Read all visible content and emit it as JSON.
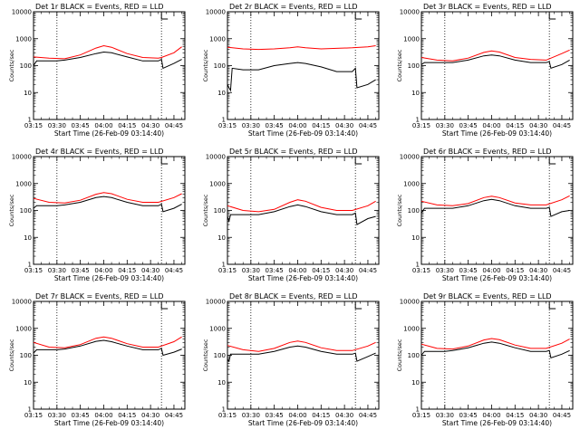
{
  "figure": {
    "panel_title_suffix": "BLACK = Events, RED = LLD",
    "ylabel": "Counts/sec",
    "xlabel": "Start Time (26-Feb-09 03:14:40)",
    "x_ticks": [
      "03:15",
      "03:30",
      "03:45",
      "04:00",
      "04:15",
      "04:30",
      "04:45"
    ],
    "y_ticks": [
      "1",
      "10",
      "100",
      "1000",
      "10000"
    ],
    "series_colors": {
      "events": "#000000",
      "lld": "#ff0000"
    }
  },
  "chart_data": [
    {
      "type": "line",
      "title": "Det 1r BLACK = Events, RED = LLD",
      "xlabel": "Start Time (26-Feb-09 03:14:40)",
      "ylabel": "Counts/sec",
      "x_unit": "minutes after 03:15",
      "ylim": [
        1,
        10000
      ],
      "log_y": true,
      "vlines_x": [
        15,
        82
      ],
      "marker_x": 82,
      "series": [
        {
          "color": "#000000",
          "x": [
            0,
            2,
            10,
            15,
            20,
            30,
            40,
            45,
            50,
            60,
            70,
            80,
            82,
            83,
            90,
            95
          ],
          "values": [
            100,
            150,
            150,
            150,
            160,
            200,
            280,
            320,
            300,
            210,
            150,
            150,
            170,
            80,
            120,
            170
          ]
        },
        {
          "color": "#ff0000",
          "x": [
            0,
            10,
            20,
            30,
            40,
            45,
            50,
            60,
            70,
            80,
            82,
            90,
            95
          ],
          "values": [
            210,
            190,
            180,
            250,
            450,
            550,
            480,
            280,
            200,
            190,
            200,
            300,
            500
          ]
        }
      ]
    },
    {
      "type": "line",
      "title": "Det 2r BLACK = Events, RED = LLD",
      "xlabel": "Start Time (26-Feb-09 03:14:40)",
      "ylabel": "Counts/sec",
      "x_unit": "minutes after 03:15",
      "ylim": [
        1,
        10000
      ],
      "log_y": true,
      "vlines_x": [
        15,
        82
      ],
      "marker_x": 82,
      "series": [
        {
          "color": "#000000",
          "x": [
            0,
            1,
            2,
            3,
            10,
            15,
            20,
            30,
            40,
            45,
            50,
            60,
            70,
            80,
            82,
            83,
            90,
            95
          ],
          "values": [
            20,
            15,
            12,
            80,
            70,
            70,
            70,
            100,
            120,
            130,
            120,
            90,
            60,
            60,
            80,
            15,
            20,
            30
          ]
        },
        {
          "color": "#ff0000",
          "x": [
            0,
            10,
            20,
            30,
            40,
            45,
            50,
            60,
            70,
            80,
            90,
            95
          ],
          "values": [
            480,
            420,
            400,
            420,
            460,
            500,
            460,
            420,
            440,
            460,
            500,
            550
          ]
        }
      ]
    },
    {
      "type": "line",
      "title": "Det 3r BLACK = Events, RED = LLD",
      "xlabel": "Start Time (26-Feb-09 03:14:40)",
      "ylabel": "Counts/sec",
      "x_unit": "minutes after 03:15",
      "ylim": [
        1,
        10000
      ],
      "log_y": true,
      "vlines_x": [
        15,
        82
      ],
      "marker_x": 82,
      "series": [
        {
          "color": "#000000",
          "x": [
            0,
            2,
            10,
            15,
            20,
            30,
            40,
            45,
            50,
            60,
            70,
            80,
            82,
            83,
            90,
            95
          ],
          "values": [
            110,
            130,
            130,
            130,
            130,
            160,
            230,
            250,
            230,
            160,
            130,
            130,
            140,
            80,
            110,
            160
          ]
        },
        {
          "color": "#ff0000",
          "x": [
            0,
            10,
            20,
            30,
            40,
            45,
            50,
            60,
            70,
            80,
            90,
            95
          ],
          "values": [
            200,
            160,
            150,
            190,
            310,
            350,
            320,
            200,
            170,
            160,
            280,
            380
          ]
        }
      ]
    },
    {
      "type": "line",
      "title": "Det 4r BLACK = Events, RED = LLD",
      "xlabel": "Start Time (26-Feb-09 03:14:40)",
      "ylabel": "Counts/sec",
      "x_unit": "minutes after 03:15",
      "ylim": [
        1,
        10000
      ],
      "log_y": true,
      "vlines_x": [
        15,
        82
      ],
      "marker_x": 82,
      "series": [
        {
          "color": "#000000",
          "x": [
            0,
            2,
            10,
            15,
            20,
            30,
            40,
            45,
            50,
            60,
            70,
            80,
            82,
            83,
            90,
            95
          ],
          "values": [
            120,
            150,
            150,
            150,
            160,
            200,
            300,
            330,
            300,
            200,
            150,
            150,
            170,
            90,
            120,
            170
          ]
        },
        {
          "color": "#ff0000",
          "x": [
            0,
            10,
            20,
            30,
            40,
            45,
            50,
            60,
            70,
            80,
            90,
            95
          ],
          "values": [
            280,
            200,
            190,
            240,
            400,
            460,
            420,
            260,
            200,
            200,
            300,
            420
          ]
        }
      ]
    },
    {
      "type": "line",
      "title": "Det 5r BLACK = Events, RED = LLD",
      "xlabel": "Start Time (26-Feb-09 03:14:40)",
      "ylabel": "Counts/sec",
      "x_unit": "minutes after 03:15",
      "ylim": [
        1,
        10000
      ],
      "log_y": true,
      "vlines_x": [
        15,
        82
      ],
      "marker_x": 82,
      "series": [
        {
          "color": "#000000",
          "x": [
            0,
            1,
            2,
            10,
            15,
            20,
            30,
            40,
            45,
            50,
            60,
            70,
            80,
            82,
            83,
            90,
            95
          ],
          "values": [
            60,
            40,
            70,
            70,
            70,
            70,
            90,
            140,
            160,
            140,
            90,
            70,
            70,
            80,
            30,
            50,
            60
          ]
        },
        {
          "color": "#ff0000",
          "x": [
            0,
            10,
            20,
            30,
            40,
            45,
            50,
            60,
            70,
            80,
            90,
            95
          ],
          "values": [
            150,
            100,
            90,
            110,
            200,
            250,
            220,
            130,
            100,
            100,
            150,
            220
          ]
        }
      ]
    },
    {
      "type": "line",
      "title": "Det 6r BLACK = Events, RED = LLD",
      "xlabel": "Start Time (26-Feb-09 03:14:40)",
      "ylabel": "Counts/sec",
      "x_unit": "minutes after 03:15",
      "ylim": [
        1,
        10000
      ],
      "log_y": true,
      "vlines_x": [
        15,
        82
      ],
      "marker_x": 82,
      "series": [
        {
          "color": "#000000",
          "x": [
            0,
            2,
            10,
            15,
            20,
            30,
            40,
            45,
            50,
            60,
            70,
            80,
            82,
            83,
            90,
            95
          ],
          "values": [
            80,
            120,
            120,
            120,
            120,
            150,
            230,
            260,
            230,
            150,
            120,
            120,
            130,
            60,
            90,
            100
          ]
        },
        {
          "color": "#ff0000",
          "x": [
            0,
            10,
            20,
            30,
            40,
            45,
            50,
            60,
            70,
            80,
            90,
            95
          ],
          "values": [
            220,
            160,
            150,
            180,
            300,
            340,
            300,
            190,
            160,
            160,
            250,
            350
          ]
        }
      ]
    },
    {
      "type": "line",
      "title": "Det 7r BLACK = Events, RED = LLD",
      "xlabel": "Start Time (26-Feb-09 03:14:40)",
      "ylabel": "Counts/sec",
      "x_unit": "minutes after 03:15",
      "ylim": [
        1,
        10000
      ],
      "log_y": true,
      "vlines_x": [
        15,
        82
      ],
      "marker_x": 82,
      "series": [
        {
          "color": "#000000",
          "x": [
            0,
            2,
            10,
            15,
            20,
            30,
            40,
            45,
            50,
            60,
            70,
            80,
            82,
            83,
            90,
            95
          ],
          "values": [
            120,
            160,
            160,
            160,
            170,
            220,
            330,
            360,
            320,
            220,
            160,
            160,
            180,
            100,
            130,
            170
          ]
        },
        {
          "color": "#ff0000",
          "x": [
            0,
            10,
            20,
            30,
            40,
            45,
            50,
            60,
            70,
            80,
            90,
            95
          ],
          "values": [
            300,
            200,
            190,
            250,
            430,
            480,
            430,
            270,
            200,
            200,
            320,
            480
          ]
        }
      ]
    },
    {
      "type": "line",
      "title": "Det 8r BLACK = Events, RED = LLD",
      "xlabel": "Start Time (26-Feb-09 03:14:40)",
      "ylabel": "Counts/sec",
      "x_unit": "minutes after 03:15",
      "ylim": [
        1,
        10000
      ],
      "log_y": true,
      "vlines_x": [
        15,
        82
      ],
      "marker_x": 82,
      "series": [
        {
          "color": "#000000",
          "x": [
            0,
            1,
            2,
            10,
            15,
            20,
            30,
            40,
            45,
            50,
            60,
            70,
            80,
            82,
            83,
            90,
            95
          ],
          "values": [
            70,
            60,
            110,
            110,
            110,
            110,
            140,
            200,
            220,
            200,
            140,
            110,
            110,
            120,
            60,
            90,
            120
          ]
        },
        {
          "color": "#ff0000",
          "x": [
            0,
            10,
            20,
            30,
            40,
            45,
            50,
            60,
            70,
            80,
            90,
            95
          ],
          "values": [
            230,
            160,
            140,
            180,
            300,
            340,
            300,
            190,
            150,
            150,
            220,
            300
          ]
        }
      ]
    },
    {
      "type": "line",
      "title": "Det 9r BLACK = Events, RED = LLD",
      "xlabel": "Start Time (26-Feb-09 03:14:40)",
      "ylabel": "Counts/sec",
      "x_unit": "minutes after 03:15",
      "ylim": [
        1,
        10000
      ],
      "log_y": true,
      "vlines_x": [
        15,
        82
      ],
      "marker_x": 82,
      "series": [
        {
          "color": "#000000",
          "x": [
            0,
            2,
            10,
            15,
            20,
            30,
            40,
            45,
            50,
            60,
            70,
            80,
            82,
            83,
            90,
            95
          ],
          "values": [
            100,
            140,
            140,
            140,
            150,
            190,
            280,
            310,
            280,
            190,
            140,
            140,
            150,
            80,
            110,
            150
          ]
        },
        {
          "color": "#ff0000",
          "x": [
            0,
            10,
            20,
            30,
            40,
            45,
            50,
            60,
            70,
            80,
            90,
            95
          ],
          "values": [
            260,
            180,
            170,
            220,
            370,
            420,
            380,
            240,
            180,
            180,
            280,
            400
          ]
        }
      ]
    }
  ]
}
